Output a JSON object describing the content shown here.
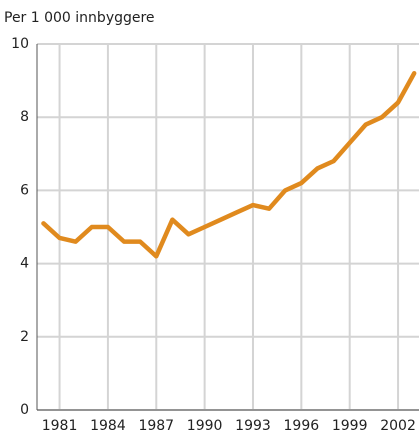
{
  "chart_data": {
    "type": "line",
    "y_label": "Per 1 000 innbyggere",
    "x": [
      1980,
      1981,
      1982,
      1983,
      1984,
      1985,
      1986,
      1987,
      1988,
      1989,
      1990,
      1991,
      1992,
      1993,
      1994,
      1995,
      1996,
      1997,
      1998,
      1999,
      2000,
      2001,
      2002,
      2003
    ],
    "series": [
      {
        "color": "#e08a1e",
        "values": [
          5.1,
          4.7,
          4.6,
          5.0,
          5.0,
          4.6,
          4.6,
          4.2,
          5.2,
          4.8,
          5.0,
          5.2,
          5.4,
          5.6,
          5.5,
          6.0,
          6.2,
          6.6,
          6.8,
          7.3,
          7.8,
          8.0,
          8.4,
          9.2
        ]
      }
    ],
    "xlim": [
      1979.6,
      2003.3
    ],
    "xticks": [
      1981,
      1984,
      1987,
      1990,
      1993,
      1996,
      1999,
      2002
    ],
    "ylim": [
      0,
      10
    ],
    "yticks": [
      0,
      2,
      4,
      6,
      8,
      10
    ],
    "grid": true
  }
}
